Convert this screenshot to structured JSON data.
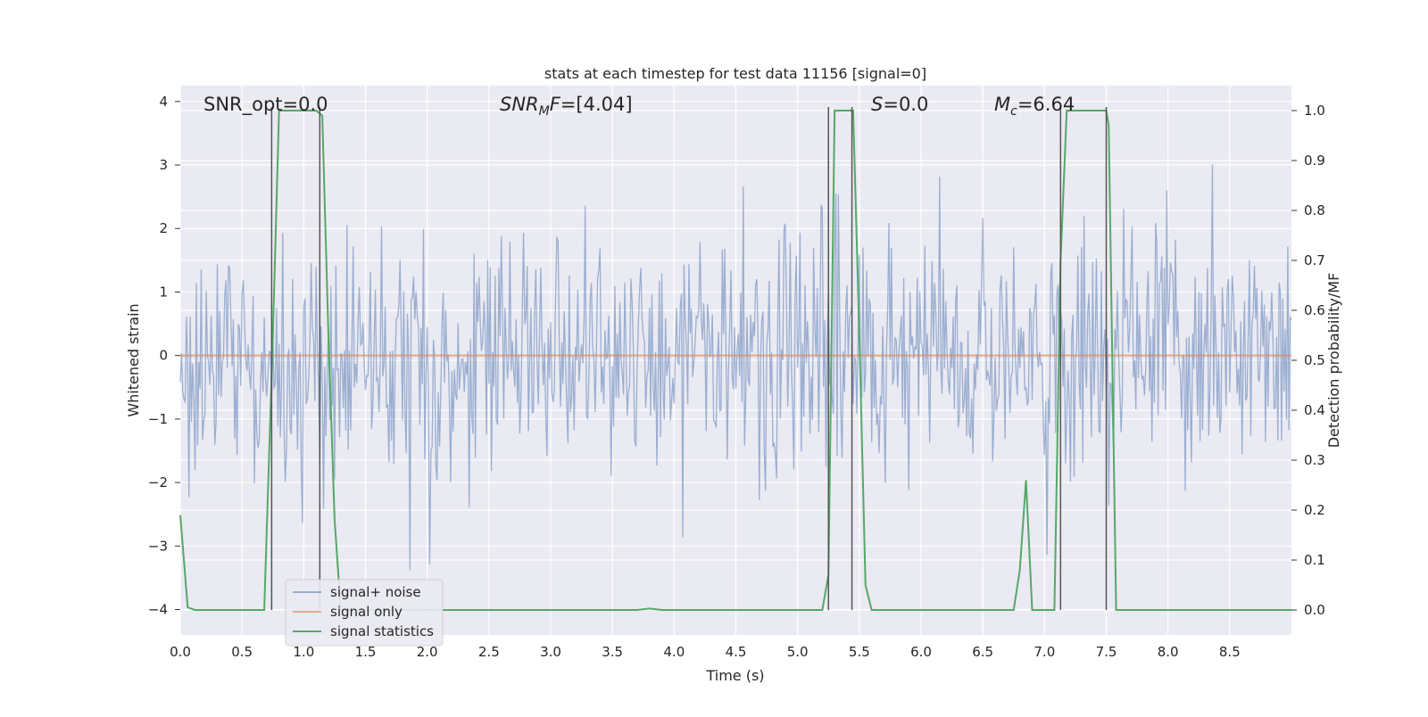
{
  "chart_data": {
    "type": "line",
    "title": "stats at each timestep for test data 11156 [signal=0]",
    "xlabel": "Time (s)",
    "ylabel_left": "Whitened strain",
    "ylabel_right": "Detection probability/MF",
    "xlim": [
      0.0,
      9.0
    ],
    "ylim_left": [
      -4.4,
      4.25
    ],
    "ylim_right": [
      -0.05,
      1.05
    ],
    "x_ticks": [
      "0.0",
      "0.5",
      "1.0",
      "1.5",
      "2.0",
      "2.5",
      "3.0",
      "3.5",
      "4.0",
      "4.5",
      "5.0",
      "5.5",
      "6.0",
      "6.5",
      "7.0",
      "7.5",
      "8.0",
      "8.5"
    ],
    "y_left_ticks": [
      "−4",
      "−3",
      "−2",
      "−1",
      "0",
      "1",
      "2",
      "3",
      "4"
    ],
    "y_right_ticks": [
      "0.0",
      "0.1",
      "0.2",
      "0.3",
      "0.4",
      "0.5",
      "0.6",
      "0.7",
      "0.8",
      "0.9",
      "1.0"
    ],
    "grid": true,
    "legend_position": "lower-left",
    "colors": {
      "background": "#eaeaf2",
      "grid": "#ffffff",
      "signal_noise": "#4c72b0",
      "signal_only": "#dd8452",
      "signal_statistics": "#55a868",
      "vlines": "#555555"
    },
    "annotations": [
      {
        "label": "SNR_opt=0.0",
        "x": 0.2
      },
      {
        "label": "SNR_MF=[4.04]",
        "x": 2.6
      },
      {
        "label": "S=0.0",
        "x": 5.6
      },
      {
        "label": "M_c=6.64",
        "x": 6.6
      }
    ],
    "series": [
      {
        "name": "signal+ noise",
        "axis": "left",
        "kind": "noise",
        "sample_count": 900,
        "amplitude_std": 1.0,
        "x_range": [
          0.0,
          9.0
        ]
      },
      {
        "name": "signal only",
        "axis": "left",
        "x": [
          0.0,
          9.0
        ],
        "y": [
          0.0,
          0.0
        ]
      },
      {
        "name": "signal statistics",
        "axis": "right",
        "x": [
          0.0,
          0.06,
          0.12,
          0.2,
          0.5,
          0.68,
          0.75,
          0.8,
          1.0,
          1.1,
          1.15,
          1.2,
          1.25,
          1.3,
          1.5,
          2.0,
          3.0,
          3.7,
          3.8,
          3.9,
          5.0,
          5.2,
          5.25,
          5.3,
          5.4,
          5.45,
          5.5,
          5.55,
          5.6,
          6.0,
          6.5,
          6.75,
          6.8,
          6.85,
          6.9,
          6.95,
          7.08,
          7.13,
          7.18,
          7.2,
          7.5,
          7.52,
          7.58,
          8.0,
          8.5,
          9.0
        ],
        "y": [
          0.19,
          0.005,
          0.0,
          0.0,
          0.0,
          0.0,
          0.55,
          1.0,
          1.0,
          1.0,
          0.99,
          0.55,
          0.18,
          0.0,
          0.0,
          0.0,
          0.0,
          0.0,
          0.003,
          0.0,
          0.0,
          0.0,
          0.07,
          1.0,
          1.0,
          1.0,
          0.55,
          0.05,
          0.0,
          0.0,
          0.0,
          0.0,
          0.08,
          0.26,
          0.0,
          0.0,
          0.0,
          0.7,
          1.0,
          1.0,
          1.0,
          0.97,
          0.0,
          0.0,
          0.0,
          0.0
        ]
      }
    ],
    "vertical_lines_x": [
      0.74,
      1.13,
      5.25,
      5.44,
      7.13,
      7.5
    ]
  }
}
